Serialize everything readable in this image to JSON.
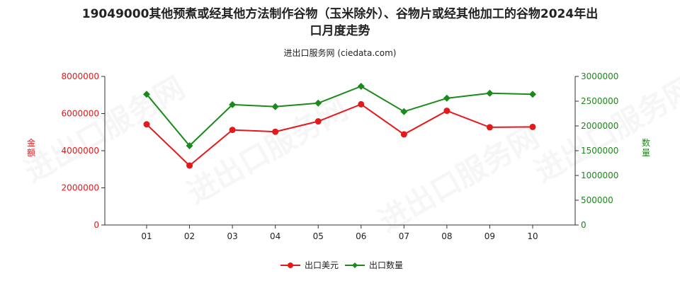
{
  "title_line1": "19049000其他预煮或经其他方法制作谷物（玉米除外）、谷物片或经其他加工的谷物2024年出",
  "title_line2": "口月度走势",
  "subtitle": "进出口服务网 (ciedata.com)",
  "watermark": "进出口服务网",
  "colors": {
    "amount": "#e31a1c",
    "quantity": "#1a8a1a",
    "axis": "#333333"
  },
  "chart_data": {
    "type": "line",
    "categories": [
      "01",
      "02",
      "03",
      "04",
      "05",
      "06",
      "07",
      "08",
      "09",
      "10"
    ],
    "series": [
      {
        "name": "出口美元",
        "axis": "left",
        "color": "#e31a1c",
        "values": [
          5420000,
          3200000,
          5120000,
          5020000,
          5580000,
          6500000,
          4880000,
          6150000,
          5260000,
          5280000
        ]
      },
      {
        "name": "出口数量",
        "axis": "right",
        "color": "#1a8a1a",
        "values": [
          2640000,
          1600000,
          2430000,
          2390000,
          2460000,
          2800000,
          2290000,
          2560000,
          2660000,
          2640000
        ]
      }
    ],
    "ylabel_left": "金额",
    "ylabel_right": "数量",
    "ylim_left": [
      0,
      8000000
    ],
    "ylim_right": [
      0,
      3000000
    ],
    "yticks_left": [
      "0",
      "2000000",
      "4000000",
      "6000000",
      "8000000"
    ],
    "yticks_right": [
      "0",
      "500000",
      "1000000",
      "1500000",
      "2000000",
      "2500000",
      "3000000"
    ],
    "legend_position": "bottom",
    "grid": false
  }
}
